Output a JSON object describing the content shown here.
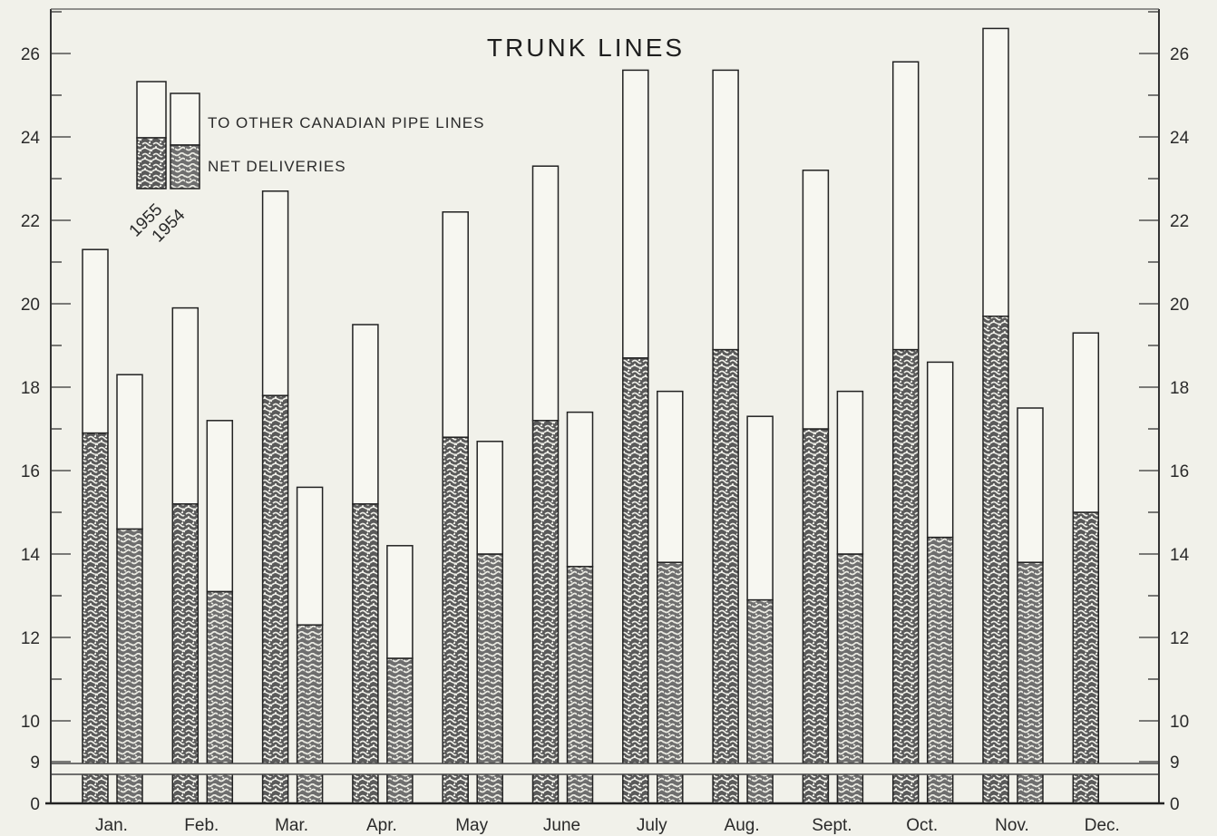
{
  "chart_data": {
    "type": "bar",
    "stacked": true,
    "title": "TRUNK LINES",
    "categories": [
      "Jan.",
      "Feb.",
      "Mar.",
      "Apr.",
      "May",
      "June",
      "July",
      "Aug.",
      "Sept.",
      "Oct.",
      "Nov.",
      "Dec."
    ],
    "series": [
      {
        "name": "NET DELIVERIES",
        "year": "1955",
        "values": [
          16.9,
          15.2,
          17.8,
          15.2,
          16.8,
          17.2,
          18.7,
          18.9,
          17.0,
          18.9,
          19.7,
          15.0
        ]
      },
      {
        "name": "TO OTHER CANADIAN PIPE LINES",
        "year": "1955",
        "values": [
          4.4,
          4.7,
          4.9,
          4.3,
          5.4,
          6.1,
          6.9,
          6.7,
          6.2,
          6.9,
          6.9,
          4.3
        ]
      },
      {
        "name": "NET DELIVERIES",
        "year": "1954",
        "values": [
          14.6,
          13.1,
          12.3,
          11.5,
          14.0,
          13.7,
          13.8,
          12.9,
          14.0,
          14.4,
          13.8,
          null
        ]
      },
      {
        "name": "TO OTHER CANADIAN PIPE LINES",
        "year": "1954",
        "values": [
          3.7,
          4.1,
          3.3,
          2.7,
          2.7,
          3.7,
          4.1,
          4.4,
          3.9,
          4.2,
          3.7,
          null
        ]
      }
    ],
    "yticks_left": [
      0,
      9,
      10,
      12,
      14,
      16,
      18,
      20,
      22,
      24,
      26
    ],
    "yticks_right": [
      0,
      9,
      10,
      12,
      14,
      16,
      18,
      20,
      22,
      24,
      26
    ],
    "ylim": [
      0,
      27
    ],
    "axis_break": [
      0,
      9
    ],
    "legend": {
      "items": [
        "TO OTHER CANADIAN PIPE LINES",
        "NET DELIVERIES"
      ],
      "years": [
        "1955",
        "1954"
      ],
      "placement": "top-left"
    },
    "grid": false
  }
}
